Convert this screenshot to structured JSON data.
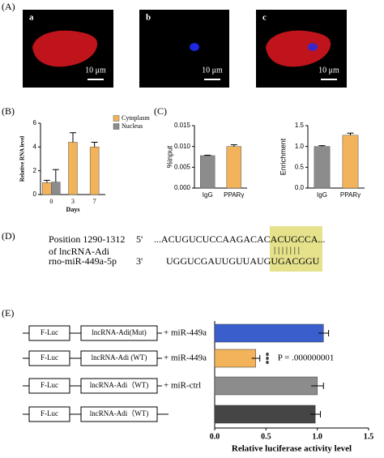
{
  "panel_labels": [
    "(A)",
    "(B)",
    "(C)",
    "(D)",
    "(E)"
  ],
  "microscopy": {
    "images": [
      {
        "label": "a",
        "scale_bar": "10 μm"
      },
      {
        "label": "b",
        "scale_bar": "10 μm"
      },
      {
        "label": "c",
        "scale_bar": "10 μm"
      }
    ]
  },
  "chart_data": [
    {
      "type": "bar",
      "ylabel": "Relative RNA level",
      "xlabel": "Days",
      "categories": [
        "0",
        "3",
        "7"
      ],
      "series": [
        {
          "name": "Cytoplasm",
          "color": "#f2b35a",
          "values": [
            1.0,
            4.4,
            4.0
          ],
          "errors": [
            0.2,
            0.8,
            0.4
          ]
        },
        {
          "name": "Nucleus",
          "color": "#8c8c8c",
          "values": [
            1.05,
            null,
            null
          ],
          "errors": [
            1.05,
            null,
            null
          ]
        }
      ],
      "ylim": [
        0,
        6
      ],
      "yticks": [
        0,
        2,
        4,
        6
      ],
      "legend": "top-right"
    },
    {
      "type": "bar",
      "ylabel": "%input",
      "categories": [
        "IgG",
        "PPARγ"
      ],
      "series": [
        {
          "colors": [
            "#8c8c8c",
            "#f2b35a"
          ],
          "values": [
            0.0078,
            0.01
          ],
          "errors": [
            0.0001,
            0.0004
          ]
        }
      ],
      "ylim": [
        0,
        0.015
      ],
      "yticks": [
        {
          "value": 0,
          "label": "0.000"
        },
        0.005,
        {
          "value": 0.01,
          "label": "0.010"
        },
        0.015
      ]
    },
    {
      "type": "bar",
      "ylabel": "Enrichment",
      "categories": [
        "IgG",
        "PPARγ"
      ],
      "series": [
        {
          "colors": [
            "#8c8c8c",
            "#f2b35a"
          ],
          "values": [
            1.0,
            1.27
          ],
          "errors": [
            0.02,
            0.05
          ]
        }
      ],
      "ylim": [
        0,
        1.5
      ],
      "yticks": [
        {
          "value": 0,
          "label": "0.0"
        },
        0.5,
        {
          "value": 1,
          "label": "1.0"
        },
        1.5
      ]
    },
    {
      "type": "hbar",
      "xlabel": "Relative luciferase activity level",
      "series": [
        {
          "colors": [
            "#3a5fcd",
            "#f2b35a",
            "#8c8c8c",
            "#454545"
          ],
          "values": [
            1.06,
            0.4,
            1.0,
            0.98
          ],
          "errors": [
            0.05,
            0.04,
            0.06,
            0.05
          ]
        }
      ],
      "xlim": [
        0,
        1.5
      ],
      "xticks": [
        {
          "value": 0,
          "label": "0.0"
        },
        0.5,
        {
          "value": 1,
          "label": "1.0"
        },
        1.5
      ],
      "annotations": [
        {
          "text": "***",
          "row": 1
        },
        {
          "text": "P = .000000001",
          "row": 1
        }
      ]
    }
  ],
  "sequence": {
    "position": "Position 1290-1312",
    "gene": "of lncRNA-Adi",
    "end5": "5'",
    "lnc_seq": "...ACUGUCUCCAAGACACACUGCCA...",
    "pairing": "| | | | | | |",
    "mirna": "rno-miR-449a-5p",
    "end3": "3'",
    "mir_seq": "UGGUCGAUUGUUAUGUGACGGU"
  },
  "constructs": [
    {
      "reporter": "F-Luc",
      "insert": "lncRNA-Adi(Mut)",
      "treatment": "+ miR-449a"
    },
    {
      "reporter": "F-Luc",
      "insert": "lncRNA-Adi (WT)",
      "treatment": "+ miR-449a"
    },
    {
      "reporter": "F-Luc",
      "insert": "lncRNA-Adi（WT)",
      "treatment": "+ miR-ctrl"
    },
    {
      "reporter": "F-Luc",
      "insert": "lncRNA-Adi（WT)"
    }
  ]
}
